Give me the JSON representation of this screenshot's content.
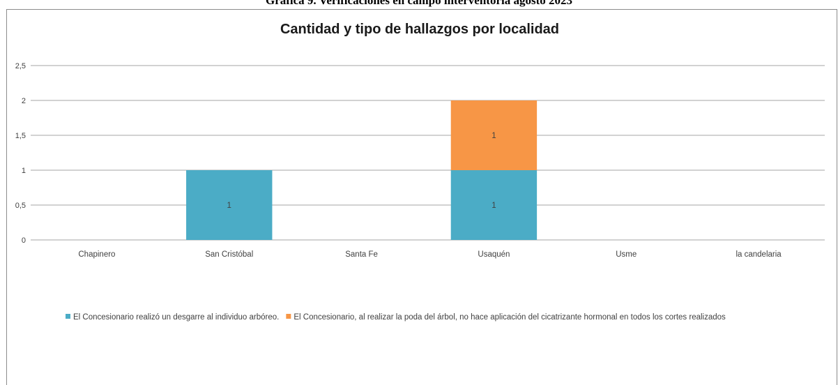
{
  "caption": "Gráfica 9. Verificaciones en campo interventoría agosto 2023",
  "chart_data": {
    "type": "bar",
    "stacked": true,
    "title": "Cantidad y tipo de hallazgos por localidad",
    "xlabel": "",
    "ylabel": "",
    "categories": [
      "Chapinero",
      "San Cristóbal",
      "Santa Fe",
      "Usaquén",
      "Usme",
      "la candelaria"
    ],
    "ylim": [
      0,
      2.5
    ],
    "yticks": [
      "0",
      "0,5",
      "1",
      "1,5",
      "2",
      "2,5"
    ],
    "ytick_values": [
      0,
      0.5,
      1,
      1.5,
      2,
      2.5
    ],
    "grid": true,
    "legend_position": "bottom",
    "series": [
      {
        "name": "El Concesionario  realizó un desgarre al individuo arbóreo.",
        "color": "#4bacc6",
        "values": [
          0,
          1,
          0,
          1,
          0,
          0
        ],
        "labels": [
          "",
          "1",
          "",
          "1",
          "",
          ""
        ]
      },
      {
        "name": "El Concesionario, al realizar la poda del árbol,  no  hace aplicación del cicatrizante hormonal en todos los cortes realizados",
        "color": "#f79646",
        "values": [
          0,
          0,
          0,
          1,
          0,
          0
        ],
        "labels": [
          "",
          "",
          "",
          "1",
          "",
          ""
        ]
      }
    ]
  }
}
